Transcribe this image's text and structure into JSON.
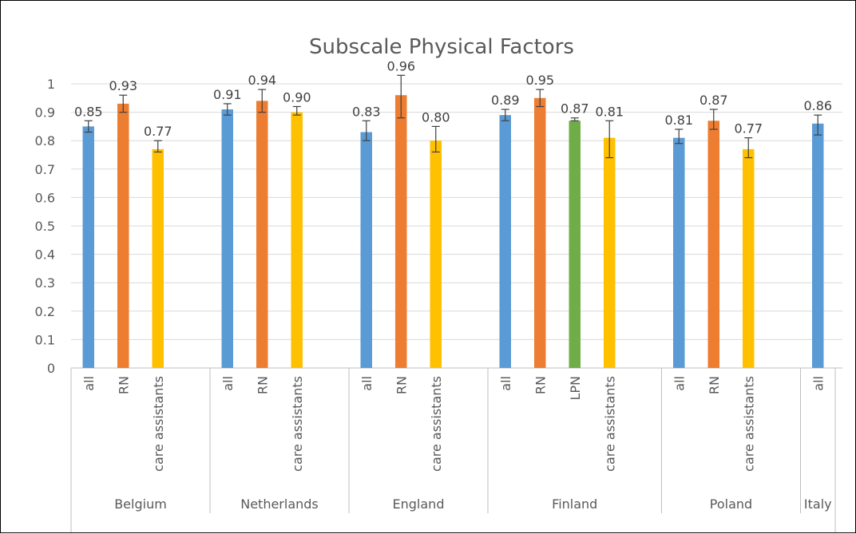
{
  "chart_data": {
    "type": "bar",
    "title": "Subscale Physical Factors",
    "xlabel": "",
    "ylabel": "",
    "ylim": [
      0,
      1
    ],
    "yticks": [
      "0",
      "0.1",
      "0.2",
      "0.3",
      "0.4",
      "0.5",
      "0.6",
      "0.7",
      "0.8",
      "0.9",
      "1"
    ],
    "grid": true,
    "legend": "none",
    "colors": {
      "all": "#5B9BD5",
      "RN": "#ED7D31",
      "LPN": "#70AD47",
      "care assistants": "#FFC000"
    },
    "groups": [
      {
        "name": "Belgium",
        "bars": [
          {
            "category": "all",
            "value": 0.85,
            "label": "0.85",
            "err_low": 0.83,
            "err_high": 0.87
          },
          {
            "category": "RN",
            "value": 0.93,
            "label": "0.93",
            "err_low": 0.9,
            "err_high": 0.96
          },
          {
            "category": "care assistants",
            "value": 0.77,
            "label": "0.77",
            "err_low": 0.76,
            "err_high": 0.8
          }
        ]
      },
      {
        "name": "Netherlands",
        "bars": [
          {
            "category": "all",
            "value": 0.91,
            "label": "0.91",
            "err_low": 0.89,
            "err_high": 0.93
          },
          {
            "category": "RN",
            "value": 0.94,
            "label": "0.94",
            "err_low": 0.9,
            "err_high": 0.98
          },
          {
            "category": "care assistants",
            "value": 0.9,
            "label": "0.90",
            "err_low": 0.89,
            "err_high": 0.92
          }
        ]
      },
      {
        "name": "England",
        "bars": [
          {
            "category": "all",
            "value": 0.83,
            "label": "0.83",
            "err_low": 0.8,
            "err_high": 0.87
          },
          {
            "category": "RN",
            "value": 0.96,
            "label": "0.96",
            "err_low": 0.88,
            "err_high": 1.03
          },
          {
            "category": "care assistants",
            "value": 0.8,
            "label": "0.80",
            "err_low": 0.76,
            "err_high": 0.85
          }
        ]
      },
      {
        "name": "Finland",
        "bars": [
          {
            "category": "all",
            "value": 0.89,
            "label": "0.89",
            "err_low": 0.87,
            "err_high": 0.91
          },
          {
            "category": "RN",
            "value": 0.95,
            "label": "0.95",
            "err_low": 0.92,
            "err_high": 0.98
          },
          {
            "category": "LPN",
            "value": 0.87,
            "label": "0.87",
            "err_low": 0.87,
            "err_high": 0.88
          },
          {
            "category": "care assistants",
            "value": 0.81,
            "label": "0.81",
            "err_low": 0.74,
            "err_high": 0.87
          }
        ]
      },
      {
        "name": "Poland",
        "bars": [
          {
            "category": "all",
            "value": 0.81,
            "label": "0.81",
            "err_low": 0.79,
            "err_high": 0.84
          },
          {
            "category": "RN",
            "value": 0.87,
            "label": "0.87",
            "err_low": 0.84,
            "err_high": 0.91
          },
          {
            "category": "care assistants",
            "value": 0.77,
            "label": "0.77",
            "err_low": 0.74,
            "err_high": 0.81
          }
        ]
      },
      {
        "name": "Italy",
        "bars": [
          {
            "category": "all",
            "value": 0.86,
            "label": "0.86",
            "err_low": 0.82,
            "err_high": 0.89
          }
        ]
      }
    ]
  }
}
